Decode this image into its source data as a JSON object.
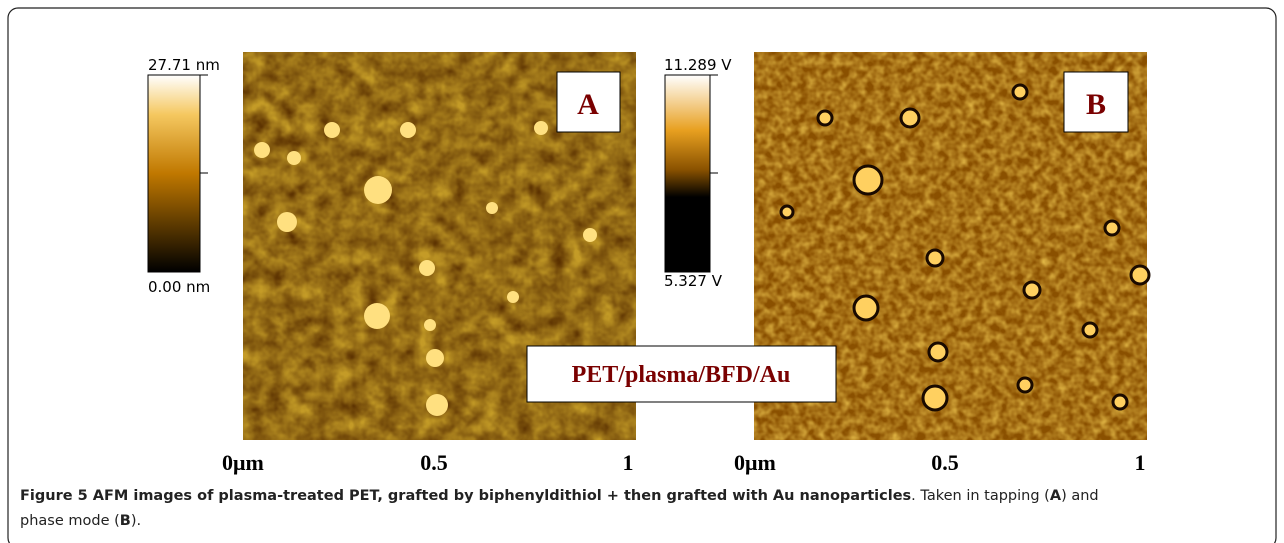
{
  "panels": [
    {
      "label": "A",
      "scale_max": "27.71 nm",
      "scale_min": "0.00 nm"
    },
    {
      "label": "B",
      "scale_max": "11.289 V",
      "scale_min": "5.327 V"
    }
  ],
  "axis_labels": [
    "0μm",
    "0.5",
    "1"
  ],
  "overlay_label": "PET/plasma/BFD/Au",
  "caption": [
    {
      "text": "Figure 5",
      "bold": true
    },
    {
      "text": " AFM images of plasma-treated PET, grafted by biphenyldithiol + then grafted with Au nanoparticles",
      "bold": true
    },
    {
      "text": ". Taken in tapping (",
      "bold": false
    },
    {
      "text": "A",
      "bold": true
    },
    {
      "text": ") and",
      "bold": false
    },
    {
      "text": "phase mode (",
      "bold": false
    },
    {
      "text": "B",
      "bold": true
    },
    {
      "text": ").",
      "bold": false
    }
  ]
}
